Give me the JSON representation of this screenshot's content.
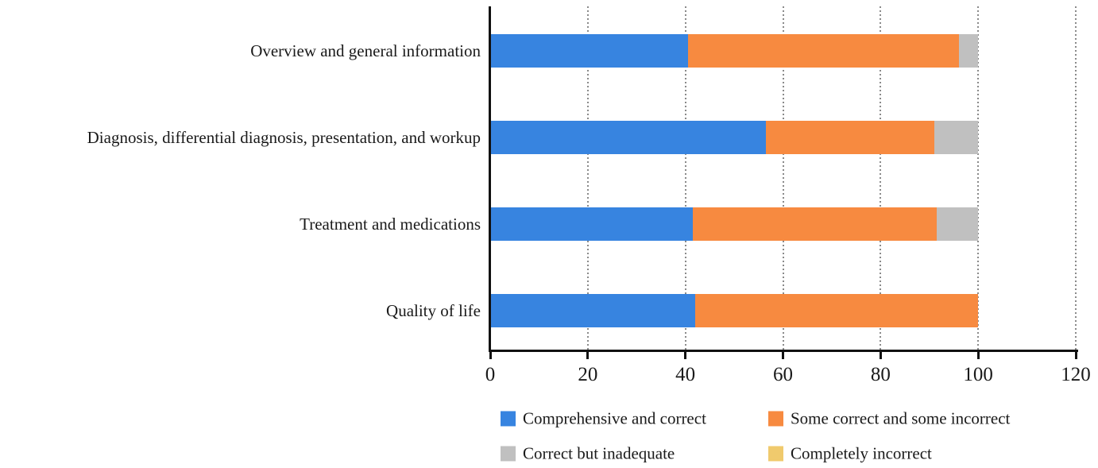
{
  "figure": {
    "background": "#ffffff",
    "text_color": "#1a1a1a",
    "axis_color": "#111111",
    "gridline_color": "#8a8a8a"
  },
  "chart_data": {
    "type": "bar",
    "orientation": "horizontal",
    "stacked": true,
    "title": "",
    "xlabel": "",
    "ylabel": "",
    "xlim": [
      0,
      120
    ],
    "xticks": [
      0,
      20,
      40,
      60,
      80,
      100,
      120
    ],
    "grid": "vertical-dotted",
    "legend_position": "bottom",
    "categories": [
      "Overview and general information",
      "Diagnosis, differential diagnosis, presentation, and workup",
      "Treatment and medications",
      "Quality of life"
    ],
    "series": [
      {
        "name": "Comprehensive and correct",
        "color": "#3784e0",
        "values": [
          40.5,
          56.5,
          41.5,
          42.0
        ]
      },
      {
        "name": "Some correct and some incorrect",
        "color": "#f78a40",
        "values": [
          55.5,
          34.5,
          50.0,
          58.0
        ]
      },
      {
        "name": "Correct but inadequate",
        "color": "#c0c0c0",
        "values": [
          4.0,
          9.0,
          8.5,
          0.0
        ]
      },
      {
        "name": "Completely incorrect",
        "color": "#f0ca6d",
        "values": [
          0.0,
          0.0,
          0.0,
          0.0
        ]
      }
    ]
  }
}
